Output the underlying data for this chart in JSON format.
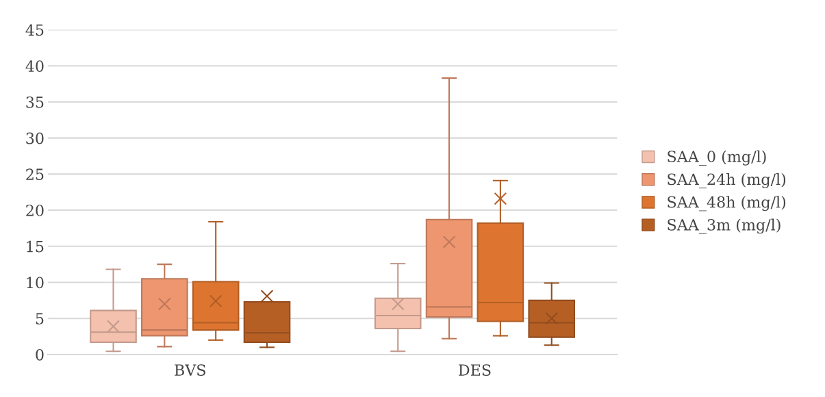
{
  "chart_data": {
    "type": "box",
    "categories": [
      "BVS",
      "DES"
    ],
    "series": [
      {
        "name": "SAA_0 (mg/l)",
        "color": "#f4c1ae",
        "boxes": [
          {
            "low": 0.45,
            "q1": 1.7,
            "median": 3.1,
            "q3": 6.1,
            "high": 11.8,
            "mean": 3.9
          },
          {
            "low": 0.45,
            "q1": 3.6,
            "median": 5.4,
            "q3": 7.8,
            "high": 12.6,
            "mean": 7.0
          }
        ]
      },
      {
        "name": "SAA_24h (mg/l)",
        "color": "#ed9670",
        "boxes": [
          {
            "low": 1.1,
            "q1": 2.6,
            "median": 3.4,
            "q3": 10.5,
            "high": 12.5,
            "mean": 7.0
          },
          {
            "low": 2.2,
            "q1": 5.2,
            "median": 6.6,
            "q3": 18.7,
            "high": 38.3,
            "mean": 15.6
          }
        ]
      },
      {
        "name": "SAA_48h (mg/l)",
        "color": "#dd7530",
        "boxes": [
          {
            "low": 2.0,
            "q1": 3.4,
            "median": 4.4,
            "q3": 10.1,
            "high": 18.4,
            "mean": 7.4
          },
          {
            "low": 2.6,
            "q1": 4.6,
            "median": 7.2,
            "q3": 18.2,
            "high": 24.1,
            "mean": 21.6
          }
        ]
      },
      {
        "name": "SAA_3m (mg/l)",
        "color": "#b65f25",
        "boxes": [
          {
            "low": 1.0,
            "q1": 1.7,
            "median": 3.0,
            "q3": 7.3,
            "high": 7.3,
            "mean": 8.1
          },
          {
            "low": 1.3,
            "q1": 2.4,
            "median": 4.4,
            "q3": 7.5,
            "high": 9.9,
            "mean": 5.0
          }
        ]
      }
    ],
    "ylim": [
      0,
      45
    ],
    "yticks": [
      0,
      5,
      10,
      15,
      20,
      25,
      30,
      35,
      40,
      45
    ],
    "grid": "y",
    "legend": "right"
  }
}
